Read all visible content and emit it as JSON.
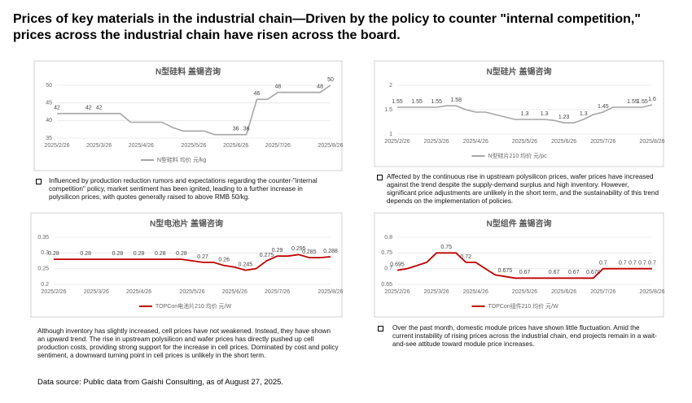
{
  "title": "Prices of key materials in the industrial chain—Driven by the policy to counter \"internal competition,\" prices across the industrial chain have risen across the board.",
  "chart_data": [
    {
      "type": "line",
      "title": "N型硅料 盖锡咨询",
      "legend": "N型硅料 均价 元/kg",
      "color": "#a6a6a6",
      "grid": true,
      "categories": [
        "2025/2/26",
        null,
        null,
        null,
        "2025/3/26",
        null,
        null,
        null,
        "2025/4/26",
        null,
        null,
        null,
        null,
        "2025/5/26",
        null,
        null,
        null,
        "2025/6/26",
        null,
        null,
        null,
        "2025/7/26",
        null,
        null,
        null,
        null,
        "2025/8/26"
      ],
      "values": [
        42,
        42,
        42,
        42,
        42,
        42,
        42,
        39.5,
        39.5,
        39.5,
        39.5,
        38,
        37,
        37,
        37,
        36,
        36,
        36,
        36,
        46,
        46,
        48,
        48,
        48,
        48,
        48,
        50
      ],
      "value_labels": [
        "42",
        null,
        null,
        "42",
        "42",
        null,
        null,
        null,
        null,
        null,
        null,
        null,
        null,
        null,
        null,
        null,
        null,
        "36",
        "36",
        "46",
        null,
        "48",
        null,
        null,
        null,
        "48",
        "50"
      ],
      "ylim": [
        35,
        50
      ],
      "yticks": [
        35,
        40,
        45,
        50
      ]
    },
    {
      "type": "line",
      "title": "N型硅片 盖锡咨询",
      "legend": "N型硅片210 均价 元/pc",
      "color": "#a6a6a6",
      "grid": true,
      "categories": [
        "2025/2/26",
        null,
        null,
        null,
        "2025/3/26",
        null,
        null,
        null,
        "2025/4/26",
        null,
        null,
        null,
        null,
        "2025/5/26",
        null,
        null,
        null,
        "2025/6/26",
        null,
        null,
        null,
        "2025/7/26",
        null,
        null,
        null,
        null,
        "2025/8/26"
      ],
      "values": [
        1.55,
        1.55,
        1.55,
        1.55,
        1.55,
        1.58,
        1.58,
        1.5,
        1.45,
        1.45,
        1.4,
        1.35,
        1.3,
        1.3,
        1.3,
        1.3,
        1.28,
        1.23,
        1.23,
        1.3,
        1.4,
        1.45,
        1.55,
        1.55,
        1.55,
        1.55,
        1.6
      ],
      "value_labels": [
        "1.55",
        null,
        "1.55",
        null,
        "1.55",
        null,
        "1.58",
        null,
        null,
        null,
        null,
        null,
        null,
        "1.3",
        null,
        "1.3",
        null,
        "1.23",
        null,
        "1.3",
        null,
        "1.45",
        null,
        null,
        "1.55",
        "1.55",
        "1.6"
      ],
      "ylim": [
        1,
        2
      ],
      "yticks": [
        1,
        1.5,
        2
      ]
    },
    {
      "type": "line",
      "title": "N型电池片 盖锡咨询",
      "legend": "TOPCon电池片210 均价 元/W",
      "color": "#c00000",
      "grid": true,
      "categories": [
        "2025/2/26",
        null,
        null,
        null,
        "2025/3/26",
        null,
        null,
        null,
        "2025/4/26",
        null,
        null,
        null,
        null,
        "2025/5/26",
        null,
        null,
        null,
        "2025/6/26",
        null,
        null,
        null,
        "2025/7/26",
        null,
        null,
        null,
        null,
        "2025/8/26"
      ],
      "values": [
        0.28,
        0.28,
        0.28,
        0.28,
        0.28,
        0.28,
        0.28,
        0.28,
        0.28,
        0.28,
        0.28,
        0.28,
        0.28,
        0.275,
        0.27,
        0.27,
        0.26,
        0.255,
        0.245,
        0.25,
        0.275,
        0.29,
        0.29,
        0.295,
        0.285,
        0.285,
        0.288
      ],
      "value_labels": [
        "0.28",
        null,
        null,
        "0.28",
        null,
        null,
        "0.28",
        null,
        "0.28",
        null,
        "0.28",
        null,
        "0.28",
        null,
        "0.27",
        null,
        "0.26",
        null,
        "0.245",
        null,
        "0.275",
        "0.29",
        null,
        "0.295",
        "0.285",
        null,
        "0.288"
      ],
      "ylim": [
        0.2,
        0.35
      ],
      "yticks": [
        0.2,
        0.25,
        0.3,
        0.35
      ]
    },
    {
      "type": "line",
      "title": "N型组件 盖锡咨询",
      "legend": "TOPCon组件210 均价 元/W",
      "color": "#c00000",
      "grid": true,
      "categories": [
        "2025/2/26",
        null,
        null,
        null,
        "2025/3/26",
        null,
        null,
        null,
        "2025/4/26",
        null,
        null,
        null,
        null,
        "2025/5/26",
        null,
        null,
        null,
        "2025/6/26",
        null,
        null,
        null,
        "2025/7/26",
        null,
        null,
        null,
        null,
        "2025/8/26"
      ],
      "values": [
        0.695,
        0.7,
        0.71,
        0.72,
        0.75,
        0.75,
        0.75,
        0.72,
        0.72,
        0.7,
        0.68,
        0.675,
        0.67,
        0.67,
        0.67,
        0.67,
        0.67,
        0.67,
        0.67,
        0.67,
        0.67,
        0.7,
        0.7,
        0.7,
        0.7,
        0.7,
        0.7
      ],
      "value_labels": [
        "0.695",
        null,
        null,
        null,
        null,
        "0.75",
        null,
        "0.72",
        null,
        null,
        null,
        "0.675",
        null,
        "0.67",
        null,
        null,
        "0.67",
        null,
        "0.67",
        null,
        "0.670",
        "0.7",
        null,
        "0.7",
        "0.7",
        "0.7",
        "0.7"
      ],
      "ylim": [
        0.65,
        0.8
      ],
      "yticks": [
        0.65,
        0.7,
        0.75,
        0.8
      ]
    }
  ],
  "notes": [
    "Influenced by production reduction rumors and expectations regarding the counter-\"internal competition\" policy, market sentiment has been ignited, leading to a further increase in polysilicon prices, with quotes generally raised to above RMB 50/kg.",
    "Affected by the continuous rise in upstream polysilicon prices, wafer prices have increased against the trend despite the supply-demand surplus and high inventory. However, significant price adjustments are unlikely in the short term, and the sustainability of this trend depends on the implementation of policies.",
    "Although inventory has slightly increased, cell prices have not weakened. Instead, they have shown an upward trend. The rise in upstream polysilicon and wafer prices has directly pushed up cell production costs, providing strong support for the increase in cell prices. Dominated by cost and policy sentiment, a downward turning point in cell prices is unlikely in the short term.",
    "Over the past month, domestic module prices have shown little fluctuation. Amid the current instability of rising prices across the industrial chain, end projects remain in a wait-and-see attitude toward module price increases."
  ],
  "source": "Data source: Public data from Gaishi Consulting, as of August 27, 2025."
}
